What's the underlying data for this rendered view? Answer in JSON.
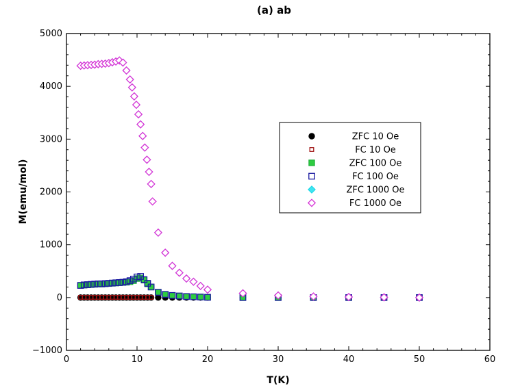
{
  "chart_data": {
    "type": "scatter",
    "title": "(a) ab",
    "xlabel": "T(K)",
    "ylabel": "M(emu/mol)",
    "xlim": [
      0,
      60
    ],
    "ylim": [
      -1000,
      5000
    ],
    "xticks": [
      0,
      10,
      20,
      30,
      40,
      50,
      60
    ],
    "yticks": [
      -1000,
      0,
      1000,
      2000,
      3000,
      4000,
      5000
    ],
    "xtick_labels": [
      "0",
      "10",
      "20",
      "30",
      "40",
      "50",
      "60"
    ],
    "ytick_labels": [
      "−1000",
      "0",
      "1000",
      "2000",
      "3000",
      "4000",
      "5000"
    ],
    "grid": false,
    "legend_position": "center-right",
    "series": [
      {
        "name": "ZFC 10 Oe",
        "marker": "circle-filled",
        "color": "#000000",
        "fill": "#000000",
        "x": [
          2,
          2.5,
          3,
          3.5,
          4,
          4.5,
          5,
          5.5,
          6,
          6.5,
          7,
          7.5,
          8,
          8.5,
          9,
          9.5,
          10,
          10.5,
          11,
          11.5,
          12,
          13,
          14,
          15,
          16,
          17,
          18,
          19,
          20,
          25,
          30,
          35,
          40,
          45,
          50
        ],
        "y": [
          0,
          0,
          0,
          0,
          0,
          0,
          0,
          0,
          0,
          0,
          0,
          0,
          0,
          0,
          0,
          0,
          0,
          0,
          0,
          0,
          0,
          0,
          0,
          0,
          0,
          0,
          0,
          0,
          0,
          0,
          0,
          0,
          0,
          0,
          0
        ]
      },
      {
        "name": "FC 10 Oe",
        "marker": "square-open-small",
        "color": "#a01414",
        "fill": "none",
        "x": [
          2,
          2.5,
          3,
          3.5,
          4,
          4.5,
          5,
          5.5,
          6,
          6.5,
          7,
          7.5,
          8,
          8.5,
          9,
          9.5,
          10,
          10.5,
          11,
          11.5,
          12
        ],
        "y": [
          5,
          5,
          5,
          5,
          5,
          5,
          5,
          5,
          5,
          5,
          5,
          5,
          5,
          5,
          5,
          5,
          5,
          5,
          5,
          5,
          5
        ]
      },
      {
        "name": "ZFC 100 Oe",
        "marker": "square-filled",
        "color": "#1faa3c",
        "fill": "#2ecc40",
        "x": [
          2,
          2.5,
          3,
          3.5,
          4,
          4.5,
          5,
          5.5,
          6,
          6.5,
          7,
          7.5,
          8,
          8.5,
          9,
          9.5,
          10,
          10.5,
          11,
          11.5,
          12,
          13,
          14,
          15,
          16,
          17,
          18,
          19,
          20,
          25,
          30,
          35,
          40,
          45,
          50
        ],
        "y": [
          230,
          235,
          240,
          245,
          250,
          255,
          255,
          260,
          265,
          270,
          275,
          280,
          285,
          290,
          300,
          320,
          360,
          370,
          330,
          260,
          200,
          100,
          60,
          40,
          30,
          20,
          15,
          10,
          5,
          0,
          0,
          0,
          0,
          0,
          0
        ]
      },
      {
        "name": "FC 100 Oe",
        "marker": "square-open",
        "color": "#1a1aa0",
        "fill": "none",
        "x": [
          2,
          2.5,
          3,
          3.5,
          4,
          4.5,
          5,
          5.5,
          6,
          6.5,
          7,
          7.5,
          8,
          8.5,
          9,
          9.5,
          10,
          10.5,
          11,
          11.5,
          12,
          13,
          14,
          15,
          16,
          17,
          18,
          19,
          20,
          25,
          30,
          35,
          40,
          45,
          50
        ],
        "y": [
          230,
          240,
          245,
          250,
          255,
          260,
          260,
          265,
          270,
          275,
          280,
          285,
          290,
          300,
          320,
          350,
          390,
          400,
          340,
          270,
          200,
          100,
          60,
          40,
          30,
          20,
          15,
          10,
          5,
          0,
          0,
          0,
          0,
          0,
          0
        ]
      },
      {
        "name": "ZFC 1000 Oe",
        "marker": "diamond-filled",
        "color": "#17d6e6",
        "fill": "#3fe4f0",
        "x": [
          2,
          2.5,
          3,
          3.5,
          4,
          4.5,
          5,
          5.5,
          6,
          6.5,
          7,
          7.5,
          8,
          8.5,
          9,
          9.3,
          9.6,
          9.9,
          10.2,
          10.5,
          10.8,
          11.1,
          11.4,
          11.7,
          12,
          13,
          14,
          15,
          16,
          17,
          18,
          19,
          20,
          25,
          30,
          35,
          40,
          45,
          50
        ],
        "y": [
          4390,
          4395,
          4400,
          4405,
          4410,
          4420,
          4425,
          4430,
          4440,
          4455,
          4470,
          4490,
          4450,
          4300,
          4130,
          3980,
          3810,
          3650,
          3470,
          3280,
          3060,
          2840,
          2610,
          2380,
          2150,
          1230,
          850,
          600,
          470,
          360,
          300,
          220,
          150,
          80,
          40,
          20,
          10,
          5,
          0
        ]
      },
      {
        "name": "FC 1000 Oe",
        "marker": "diamond-open",
        "color": "#d633d6",
        "fill": "#ffffff",
        "x": [
          2,
          2.5,
          3,
          3.5,
          4,
          4.5,
          5,
          5.5,
          6,
          6.5,
          7,
          7.5,
          8,
          8.5,
          9,
          9.3,
          9.6,
          9.9,
          10.2,
          10.5,
          10.8,
          11.1,
          11.4,
          11.7,
          12,
          12.2,
          13,
          14,
          15,
          16,
          17,
          18,
          19,
          20,
          25,
          30,
          35,
          40,
          45,
          50
        ],
        "y": [
          4390,
          4395,
          4400,
          4405,
          4410,
          4420,
          4425,
          4430,
          4440,
          4455,
          4470,
          4490,
          4450,
          4300,
          4130,
          3980,
          3810,
          3650,
          3470,
          3280,
          3060,
          2840,
          2610,
          2380,
          2150,
          1820,
          1230,
          850,
          600,
          470,
          360,
          300,
          220,
          150,
          80,
          40,
          20,
          10,
          5,
          0
        ]
      }
    ]
  }
}
